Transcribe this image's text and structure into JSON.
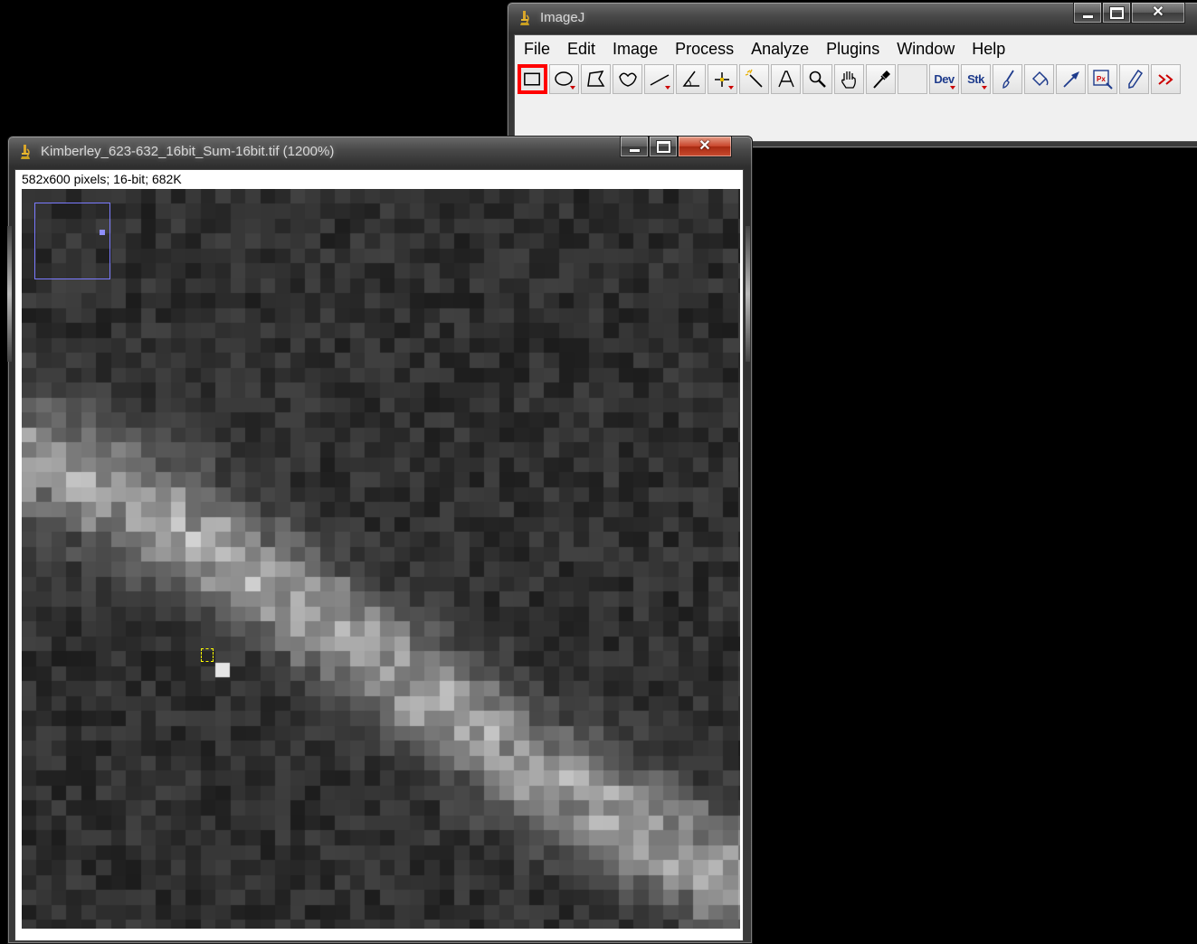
{
  "main_window": {
    "title": "ImageJ",
    "menus": [
      "File",
      "Edit",
      "Image",
      "Process",
      "Analyze",
      "Plugins",
      "Window",
      "Help"
    ],
    "tools": [
      {
        "name": "rectangle-tool-icon",
        "selected": true,
        "has_menu": false
      },
      {
        "name": "oval-tool-icon",
        "selected": false,
        "has_menu": true
      },
      {
        "name": "polygon-tool-icon",
        "selected": false,
        "has_menu": false
      },
      {
        "name": "freehand-tool-icon",
        "selected": false,
        "has_menu": false
      },
      {
        "name": "line-tool-icon",
        "selected": false,
        "has_menu": true
      },
      {
        "name": "angle-tool-icon",
        "selected": false,
        "has_menu": false
      },
      {
        "name": "point-tool-icon",
        "selected": false,
        "has_menu": true
      },
      {
        "name": "wand-tool-icon",
        "selected": false,
        "has_menu": false
      },
      {
        "name": "text-tool-icon",
        "selected": false,
        "has_menu": false
      },
      {
        "name": "magnifier-tool-icon",
        "selected": false,
        "has_menu": false
      },
      {
        "name": "hand-tool-icon",
        "selected": false,
        "has_menu": false
      },
      {
        "name": "color-picker-tool-icon",
        "selected": false,
        "has_menu": false
      },
      {
        "name": "blank-tool-slot",
        "selected": false,
        "has_menu": false
      },
      {
        "name": "dev-tool",
        "selected": false,
        "has_menu": true,
        "label": "Dev"
      },
      {
        "name": "stk-tool",
        "selected": false,
        "has_menu": true,
        "label": "Stk"
      },
      {
        "name": "brush-tool-icon",
        "selected": false,
        "has_menu": false
      },
      {
        "name": "flood-fill-tool-icon",
        "selected": false,
        "has_menu": false
      },
      {
        "name": "arrow-tool-icon",
        "selected": false,
        "has_menu": false
      },
      {
        "name": "pixel-inspector-tool-icon",
        "selected": false,
        "has_menu": false
      },
      {
        "name": "pencil-tool-icon",
        "selected": false,
        "has_menu": false
      },
      {
        "name": "more-tools-icon",
        "selected": false,
        "has_menu": false
      }
    ],
    "accent_selected": "#ff0000"
  },
  "image_window": {
    "title": "Kimberley_623-632_16bit_Sum-16bit.tif (1200%)",
    "info": "582x600 pixels; 16-bit; 682K"
  }
}
